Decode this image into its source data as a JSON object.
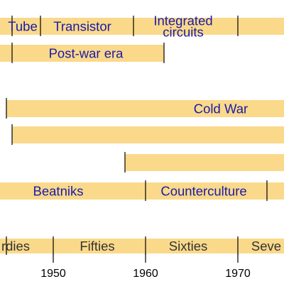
{
  "timeline": {
    "rows": [
      {
        "id": "technology",
        "segments": [
          {
            "lines": [
              "Tube"
            ]
          },
          {
            "lines": [
              "Transistor"
            ]
          },
          {
            "lines": [
              "Integrated",
              "circuits"
            ]
          },
          {
            "lines": []
          }
        ]
      },
      {
        "id": "era",
        "segments": [
          {
            "lines": []
          },
          {
            "lines": [
              "Post-war era"
            ]
          }
        ]
      },
      {
        "id": "cold-war",
        "segments": [
          {
            "lines": [
              "Cold War"
            ]
          }
        ]
      },
      {
        "id": "band-4",
        "segments": [
          {
            "lines": []
          }
        ]
      },
      {
        "id": "band-5",
        "segments": [
          {
            "lines": []
          }
        ]
      },
      {
        "id": "culture",
        "segments": [
          {
            "lines": [
              "Beatniks"
            ]
          },
          {
            "lines": [
              "Counterculture"
            ]
          },
          {
            "lines": []
          }
        ]
      },
      {
        "id": "decades",
        "segments": [
          {
            "lines": [
              "rdies"
            ]
          },
          {
            "lines": [
              "Fifties"
            ]
          },
          {
            "lines": [
              "Sixties"
            ]
          },
          {
            "lines": [
              "Seve"
            ]
          }
        ]
      }
    ],
    "axis": {
      "ticks": [
        "1950",
        "1960",
        "1970"
      ]
    }
  }
}
